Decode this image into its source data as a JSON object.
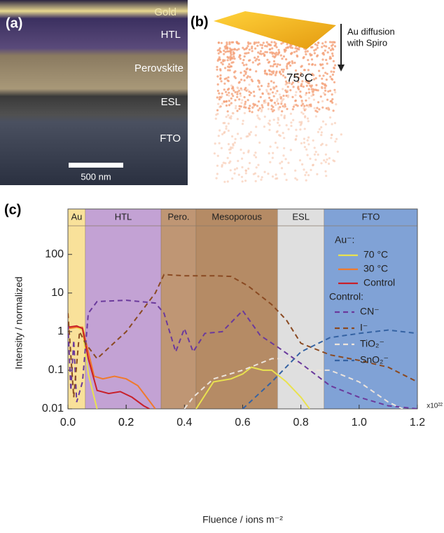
{
  "panel_a": {
    "label": "(a)",
    "layers": [
      "Gold",
      "HTL",
      "Perovskite",
      "ESL",
      "FTO"
    ],
    "scale_bar": "500 nm"
  },
  "panel_b": {
    "label": "(b)",
    "annotation": [
      "Au diffusion",
      "with Spiro"
    ],
    "temperature": "75°C"
  },
  "chart_data": {
    "type": "line",
    "label": "(c)",
    "x_label": "Fluence / ions m⁻²",
    "y_label": "Intensity / normalized",
    "x_multiplier": "x10²²",
    "xlim": [
      0,
      1.2
    ],
    "xticks": [
      {
        "value": 0,
        "label": "0.0"
      },
      0.2,
      0.4,
      0.6,
      0.8,
      {
        "value": 1,
        "label": "1.0"
      },
      0.2,
      1.2
    ],
    "ylim": [
      0.01,
      1500
    ],
    "yticks": [
      0.01,
      0.1,
      1,
      10,
      100
    ],
    "log_y": true,
    "regions": [
      {
        "name": "Au",
        "start": 0,
        "end": 0.06,
        "color": "#f8dc88"
      },
      {
        "name": "HTL",
        "start": 0.06,
        "end": 0.32,
        "color": "#b992cc"
      },
      {
        "name": "Pero.",
        "start": 0.32,
        "end": 0.44,
        "color": "#b4845c"
      },
      {
        "name": "Mesoporous",
        "start": 0.44,
        "end": 0.72,
        "color": "#a8774a"
      },
      {
        "name": "ESL",
        "start": 0.72,
        "end": 0.88,
        "color": "#d9d9d9"
      },
      {
        "name": "FTO",
        "start": 0.88,
        "end": 1.2,
        "color": "#6a92cf"
      }
    ],
    "legend_groups": [
      "Au⁻:",
      "Control:"
    ],
    "series": [
      {
        "name": "70 °C",
        "group": 0,
        "color": "#e9e24f",
        "dash": false,
        "x": [
          0,
          0.03,
          0.05,
          0.07,
          0.1,
          0.3,
          0.44,
          0.5,
          0.56,
          0.6,
          0.63,
          0.67,
          0.7,
          0.75,
          0.8,
          0.83
        ],
        "values": [
          1.2,
          1.3,
          1.1,
          0.08,
          0.01,
          null,
          0.01,
          0.05,
          0.06,
          0.08,
          0.12,
          0.1,
          0.1,
          0.05,
          0.02,
          0.01
        ]
      },
      {
        "name": "30 °C",
        "group": 0,
        "color": "#f07a2c",
        "dash": false,
        "x": [
          0,
          0.03,
          0.05,
          0.07,
          0.09,
          0.12,
          0.16,
          0.2,
          0.24,
          0.27,
          0.3
        ],
        "values": [
          1.2,
          1.3,
          1.3,
          0.3,
          0.07,
          0.06,
          0.07,
          0.06,
          0.04,
          0.02,
          0.01
        ]
      },
      {
        "name": "Control",
        "group": 0,
        "color": "#c8202a",
        "dash": false,
        "x": [
          0,
          0.03,
          0.05,
          0.07,
          0.1,
          0.14,
          0.18,
          0.22,
          0.26,
          0.28
        ],
        "values": [
          1.3,
          1.4,
          1.2,
          0.2,
          0.03,
          0.025,
          0.028,
          0.02,
          0.012,
          0.01
        ]
      },
      {
        "name": "CN⁻",
        "group": 1,
        "color": "#6b3a9c",
        "dash": true,
        "x": [
          0,
          0.01,
          0.02,
          0.03,
          0.05,
          0.07,
          0.1,
          0.2,
          0.3,
          0.33,
          0.37,
          0.4,
          0.43,
          0.47,
          0.53,
          0.6,
          0.66,
          0.72,
          0.8,
          0.9,
          1.0,
          1.1,
          1.2
        ],
        "values": [
          1.5,
          0.03,
          0.6,
          0.015,
          0.05,
          3,
          6,
          6.5,
          5.5,
          3,
          0.3,
          1.2,
          0.3,
          0.9,
          1,
          3.5,
          0.8,
          0.4,
          0.15,
          0.04,
          0.02,
          0.012,
          0.01
        ]
      },
      {
        "name": "I⁻",
        "group": 1,
        "color": "#8a4a22",
        "dash": true,
        "x": [
          0,
          0.02,
          0.04,
          0.06,
          0.1,
          0.2,
          0.3,
          0.33,
          0.4,
          0.5,
          0.56,
          0.62,
          0.7,
          0.75,
          0.8,
          0.9,
          1.0,
          1.1,
          1.2
        ],
        "values": [
          3,
          0.02,
          1,
          0.5,
          0.2,
          1,
          10,
          30,
          28,
          28,
          27,
          15,
          5,
          2,
          0.5,
          0.25,
          0.18,
          0.12,
          0.05
        ]
      },
      {
        "name": "TiO₂⁻",
        "group": 1,
        "color": "#ece4dc",
        "dash": true,
        "x": [
          0.4,
          0.43,
          0.5,
          0.6,
          0.7,
          0.75,
          0.82,
          0.9,
          1.0,
          1.1,
          1.15
        ],
        "values": [
          0.01,
          0.02,
          0.06,
          0.1,
          0.2,
          0.2,
          0.1,
          0.1,
          0.05,
          0.015,
          0.01
        ]
      },
      {
        "name": "SnO₂⁻",
        "group": 1,
        "color": "#3563a3",
        "dash": true,
        "x": [
          0.6,
          0.7,
          0.8,
          0.9,
          1.0,
          1.1,
          1.2
        ],
        "values": [
          0.01,
          0.05,
          0.3,
          0.7,
          0.9,
          1.1,
          0.9
        ]
      }
    ]
  }
}
